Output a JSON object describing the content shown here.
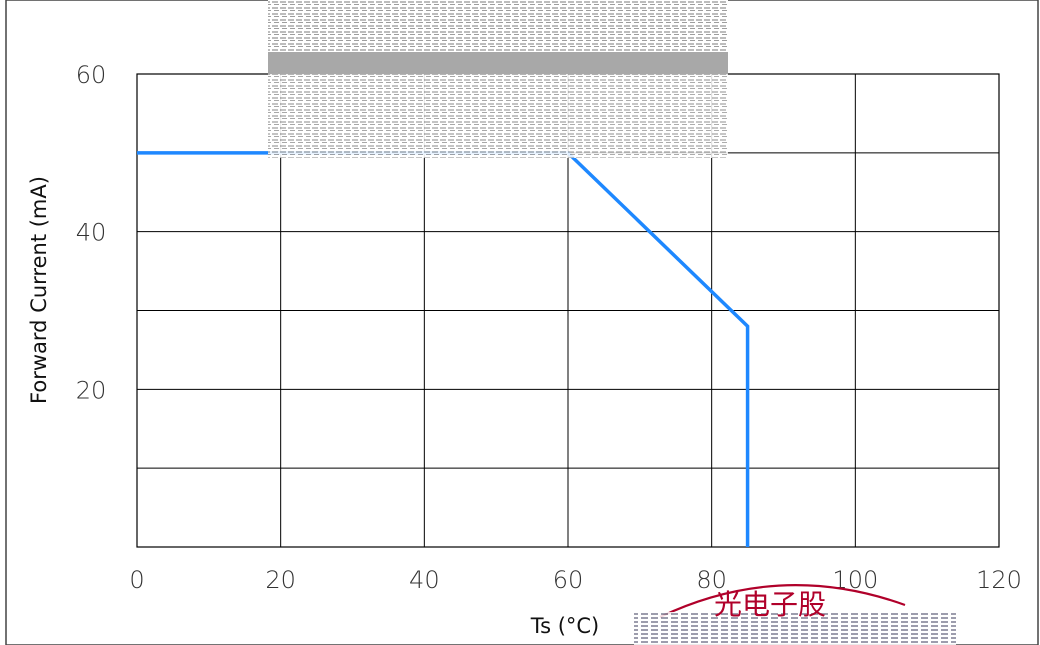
{
  "chart_data": {
    "type": "line",
    "xlabel": "Ts (°C)",
    "ylabel": "Forward Current (mA)",
    "xlim": [
      0,
      120
    ],
    "ylim": [
      0,
      60
    ],
    "x_ticks": [
      0,
      20,
      40,
      60,
      80,
      100,
      120
    ],
    "y_tick_labels": [
      20,
      40,
      60
    ],
    "y_gridlines": [
      10,
      20,
      30,
      40,
      50,
      60
    ],
    "grid": true,
    "series": [
      {
        "x": [
          0,
          60,
          85,
          85
        ],
        "y": [
          50,
          50,
          28,
          0
        ],
        "color": "#1e88ff"
      }
    ]
  },
  "watermark": {
    "text": "光电子股"
  }
}
